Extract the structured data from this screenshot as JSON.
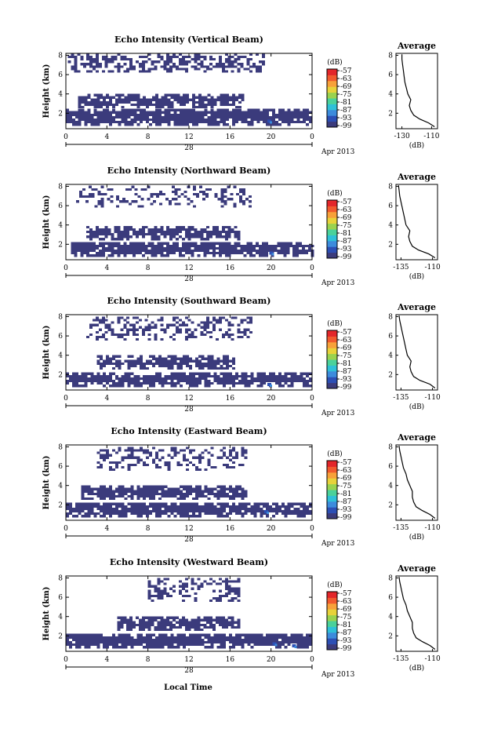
{
  "figure": {
    "xlabel": "Local Time",
    "date_label": "Apr 2013",
    "day_label": "28",
    "avg_title": "Average",
    "avg_xlabel": "(dB)",
    "cbar_label": "(dB)",
    "ylabel": "Height (km)"
  },
  "colors": {
    "scale": [
      "#3b3b7c",
      "#2c4fb5",
      "#3c8bdc",
      "#2fc0d8",
      "#4ad19a",
      "#9ad24f",
      "#e8d23a",
      "#f7a13a",
      "#f15a2e",
      "#e3262a"
    ],
    "line": "#000000",
    "background": "#ffffff"
  },
  "chart_data": [
    {
      "type": "heatmap",
      "title": "Echo Intensity (Vertical Beam)",
      "ylabel": "Height (km)",
      "x_ticks": [
        "0",
        "4",
        "8",
        "12",
        "16",
        "20",
        "0"
      ],
      "xlim": [
        0,
        24
      ],
      "y_ticks": [
        "2",
        "4",
        "6",
        "8"
      ],
      "ylim": [
        0.4,
        8.2
      ],
      "colorbar": {
        "label": "(dB)",
        "ticks": [
          "-57",
          "-63",
          "-69",
          "-75",
          "-81",
          "-87",
          "-93",
          "-99"
        ],
        "range": [
          -99,
          -57
        ]
      },
      "layers": [
        {
          "name": "low",
          "from_km": 0.7,
          "to_km": 2.4,
          "start_h": 0.0,
          "end_h": 24.0,
          "density": 0.92,
          "value_db": -99
        },
        {
          "name": "mid",
          "from_km": 2.5,
          "to_km": 3.8,
          "start_h": 1.2,
          "end_h": 17.2,
          "density": 0.85,
          "value_db": -99
        },
        {
          "name": "upper",
          "from_km": 6.2,
          "to_km": 8.1,
          "start_h": 0.2,
          "end_h": 19.3,
          "density": 0.55,
          "value_db": -99
        }
      ],
      "hotspots": [
        {
          "time_h": 19.8,
          "height_km": 1.1,
          "value_db": -93
        }
      ],
      "average": {
        "title": "Average",
        "xlabel": "(dB)",
        "x_ticks": [
          "-130",
          "-110"
        ],
        "xlim": [
          -134,
          -106
        ],
        "y_ticks": [
          "2",
          "4",
          "6",
          "8"
        ],
        "ylim": [
          0.4,
          8.2
        ],
        "profile": [
          [
            0.6,
            -108
          ],
          [
            1.0,
            -112
          ],
          [
            1.4,
            -118
          ],
          [
            1.8,
            -122
          ],
          [
            2.3,
            -124
          ],
          [
            2.8,
            -125
          ],
          [
            3.4,
            -124
          ],
          [
            4.0,
            -126
          ],
          [
            4.6,
            -127
          ],
          [
            5.2,
            -128
          ],
          [
            5.8,
            -128.5
          ],
          [
            6.4,
            -129
          ],
          [
            7.0,
            -129.5
          ],
          [
            7.6,
            -130
          ],
          [
            8.1,
            -130
          ]
        ]
      }
    },
    {
      "type": "heatmap",
      "title": "Echo Intensity (Northward Beam)",
      "ylabel": "Height (km)",
      "x_ticks": [
        "0",
        "4",
        "8",
        "12",
        "16",
        "20",
        "0"
      ],
      "xlim": [
        0,
        24
      ],
      "y_ticks": [
        "2",
        "4",
        "6",
        "8"
      ],
      "ylim": [
        0.4,
        8.2
      ],
      "colorbar": {
        "label": "(dB)",
        "ticks": [
          "-57",
          "-63",
          "-69",
          "-75",
          "-81",
          "-87",
          "-93",
          "-99"
        ],
        "range": [
          -99,
          -57
        ]
      },
      "layers": [
        {
          "name": "low",
          "from_km": 0.7,
          "to_km": 2.2,
          "start_h": 0.5,
          "end_h": 24.0,
          "density": 0.9,
          "value_db": -99
        },
        {
          "name": "mid",
          "from_km": 2.4,
          "to_km": 3.7,
          "start_h": 2.0,
          "end_h": 17.0,
          "density": 0.85,
          "value_db": -99
        },
        {
          "name": "upper",
          "from_km": 5.8,
          "to_km": 8.0,
          "start_h": 1.0,
          "end_h": 18.0,
          "density": 0.35,
          "value_db": -99
        }
      ],
      "hotspots": [
        {
          "time_h": 20.0,
          "height_km": 1.0,
          "value_db": -93
        }
      ],
      "average": {
        "title": "Average",
        "xlabel": "(dB)",
        "x_ticks": [
          "-135",
          "-110"
        ],
        "xlim": [
          -139,
          -106
        ],
        "y_ticks": [
          "2",
          "4",
          "6",
          "8"
        ],
        "ylim": [
          0.4,
          8.2
        ],
        "profile": [
          [
            0.6,
            -108
          ],
          [
            1.0,
            -113
          ],
          [
            1.4,
            -121
          ],
          [
            1.8,
            -126
          ],
          [
            2.3,
            -128
          ],
          [
            2.8,
            -129
          ],
          [
            3.4,
            -128
          ],
          [
            4.0,
            -131
          ],
          [
            4.6,
            -132
          ],
          [
            5.2,
            -133
          ],
          [
            5.8,
            -134
          ],
          [
            6.4,
            -135
          ],
          [
            7.0,
            -136
          ],
          [
            7.6,
            -136.5
          ],
          [
            8.1,
            -137
          ]
        ]
      }
    },
    {
      "type": "heatmap",
      "title": "Echo Intensity (Southward Beam)",
      "ylabel": "Height (km)",
      "x_ticks": [
        "0",
        "4",
        "8",
        "12",
        "16",
        "20",
        "0"
      ],
      "xlim": [
        0,
        24
      ],
      "y_ticks": [
        "2",
        "4",
        "6",
        "8"
      ],
      "ylim": [
        0.4,
        8.2
      ],
      "colorbar": {
        "label": "(dB)",
        "ticks": [
          "-57",
          "-63",
          "-69",
          "-75",
          "-81",
          "-87",
          "-93",
          "-99"
        ],
        "range": [
          -99,
          -57
        ]
      },
      "layers": [
        {
          "name": "low",
          "from_km": 0.7,
          "to_km": 2.2,
          "start_h": 0.0,
          "end_h": 24.0,
          "density": 0.9,
          "value_db": -99
        },
        {
          "name": "mid",
          "from_km": 2.5,
          "to_km": 3.8,
          "start_h": 3.0,
          "end_h": 16.5,
          "density": 0.85,
          "value_db": -99
        },
        {
          "name": "upper",
          "from_km": 5.5,
          "to_km": 8.0,
          "start_h": 2.0,
          "end_h": 18.0,
          "density": 0.4,
          "value_db": -99
        }
      ],
      "hotspots": [
        {
          "time_h": 19.8,
          "height_km": 0.9,
          "value_db": -93
        }
      ],
      "average": {
        "title": "Average",
        "xlabel": "(dB)",
        "x_ticks": [
          "-135",
          "-110"
        ],
        "xlim": [
          -139,
          -106
        ],
        "y_ticks": [
          "2",
          "4",
          "6",
          "8"
        ],
        "ylim": [
          0.4,
          8.2
        ],
        "profile": [
          [
            0.6,
            -108
          ],
          [
            1.0,
            -112
          ],
          [
            1.4,
            -120
          ],
          [
            1.8,
            -125
          ],
          [
            2.3,
            -127
          ],
          [
            2.8,
            -128
          ],
          [
            3.4,
            -127
          ],
          [
            4.0,
            -130
          ],
          [
            4.6,
            -131
          ],
          [
            5.2,
            -132
          ],
          [
            5.8,
            -133
          ],
          [
            6.4,
            -134
          ],
          [
            7.0,
            -135
          ],
          [
            7.6,
            -136
          ],
          [
            8.1,
            -136.5
          ]
        ]
      }
    },
    {
      "type": "heatmap",
      "title": "Echo Intensity (Eastward Beam)",
      "ylabel": "Height (km)",
      "x_ticks": [
        "0",
        "4",
        "8",
        "12",
        "16",
        "20",
        "0"
      ],
      "xlim": [
        0,
        24
      ],
      "y_ticks": [
        "2",
        "4",
        "6",
        "8"
      ],
      "ylim": [
        0.4,
        8.2
      ],
      "colorbar": {
        "label": "(dB)",
        "ticks": [
          "-57",
          "-63",
          "-69",
          "-75",
          "-81",
          "-87",
          "-93",
          "-99"
        ],
        "range": [
          -99,
          -57
        ]
      },
      "layers": [
        {
          "name": "low",
          "from_km": 0.7,
          "to_km": 2.2,
          "start_h": 0.0,
          "end_h": 24.0,
          "density": 0.9,
          "value_db": -99
        },
        {
          "name": "mid",
          "from_km": 2.5,
          "to_km": 3.9,
          "start_h": 1.5,
          "end_h": 17.5,
          "density": 0.85,
          "value_db": -99
        },
        {
          "name": "upper",
          "from_km": 5.5,
          "to_km": 8.0,
          "start_h": 3.0,
          "end_h": 17.5,
          "density": 0.35,
          "value_db": -99
        }
      ],
      "hotspots": [
        {
          "time_h": 19.5,
          "height_km": 1.2,
          "value_db": -93
        }
      ],
      "average": {
        "title": "Average",
        "xlabel": "(dB)",
        "x_ticks": [
          "-135",
          "-110"
        ],
        "xlim": [
          -139,
          -106
        ],
        "y_ticks": [
          "2",
          "4",
          "6",
          "8"
        ],
        "ylim": [
          0.4,
          8.2
        ],
        "profile": [
          [
            0.6,
            -108
          ],
          [
            1.0,
            -112
          ],
          [
            1.4,
            -118
          ],
          [
            1.8,
            -123
          ],
          [
            2.3,
            -125
          ],
          [
            2.8,
            -126
          ],
          [
            3.4,
            -126
          ],
          [
            4.0,
            -128
          ],
          [
            4.6,
            -130
          ],
          [
            5.2,
            -131
          ],
          [
            5.8,
            -133
          ],
          [
            6.4,
            -134
          ],
          [
            7.0,
            -135
          ],
          [
            7.6,
            -136
          ],
          [
            8.1,
            -136.5
          ]
        ]
      }
    },
    {
      "type": "heatmap",
      "title": "Echo Intensity (Westward Beam)",
      "ylabel": "Height (km)",
      "x_ticks": [
        "0",
        "4",
        "8",
        "12",
        "16",
        "20",
        "0"
      ],
      "xlim": [
        0,
        24
      ],
      "y_ticks": [
        "2",
        "4",
        "6",
        "8"
      ],
      "ylim": [
        0.4,
        8.2
      ],
      "colorbar": {
        "label": "(dB)",
        "ticks": [
          "-57",
          "-63",
          "-69",
          "-75",
          "-81",
          "-87",
          "-93",
          "-99"
        ],
        "range": [
          -99,
          -57
        ]
      },
      "layers": [
        {
          "name": "low",
          "from_km": 0.7,
          "to_km": 2.2,
          "start_h": 0.0,
          "end_h": 24.0,
          "density": 0.9,
          "value_db": -99
        },
        {
          "name": "mid",
          "from_km": 2.5,
          "to_km": 3.8,
          "start_h": 5.0,
          "end_h": 17.0,
          "density": 0.85,
          "value_db": -99
        },
        {
          "name": "upper",
          "from_km": 5.5,
          "to_km": 8.0,
          "start_h": 8.0,
          "end_h": 17.0,
          "density": 0.4,
          "value_db": -99
        }
      ],
      "hotspots": [
        {
          "time_h": 20.3,
          "height_km": 1.1,
          "value_db": -93
        },
        {
          "time_h": 22.2,
          "height_km": 0.9,
          "value_db": -93
        }
      ],
      "average": {
        "title": "Average",
        "xlabel": "(dB)",
        "x_ticks": [
          "-135",
          "-110"
        ],
        "xlim": [
          -139,
          -106
        ],
        "y_ticks": [
          "2",
          "4",
          "6",
          "8"
        ],
        "ylim": [
          0.4,
          8.2
        ],
        "profile": [
          [
            0.6,
            -108
          ],
          [
            1.0,
            -112
          ],
          [
            1.4,
            -118
          ],
          [
            1.8,
            -123
          ],
          [
            2.3,
            -125
          ],
          [
            2.8,
            -126
          ],
          [
            3.4,
            -126
          ],
          [
            4.0,
            -128
          ],
          [
            4.6,
            -130
          ],
          [
            5.2,
            -131
          ],
          [
            5.8,
            -133
          ],
          [
            6.4,
            -134
          ],
          [
            7.0,
            -135
          ],
          [
            7.6,
            -136
          ],
          [
            8.1,
            -136.5
          ]
        ]
      }
    }
  ]
}
